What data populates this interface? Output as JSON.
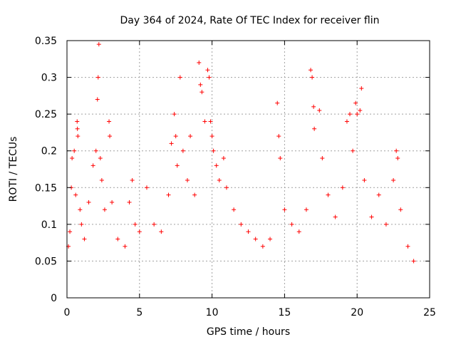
{
  "chart_data": {
    "type": "scatter",
    "title": "Day 364 of 2024, Rate Of TEC Index for receiver flin",
    "xlabel": "GPS time / hours",
    "ylabel": "ROTI / TECUs",
    "xlim": [
      0,
      25
    ],
    "ylim": [
      0,
      0.35
    ],
    "x_ticks": [
      0,
      5,
      10,
      15,
      20,
      25
    ],
    "x_tick_labels": [
      "0",
      "5",
      "10",
      "15",
      "20",
      "25"
    ],
    "y_ticks": [
      0,
      0.05,
      0.1,
      0.15,
      0.2,
      0.25,
      0.3,
      0.35
    ],
    "y_tick_labels": [
      "0",
      "0.05",
      "0.1",
      "0.15",
      "0.2",
      "0.25",
      "0.3",
      "0.35"
    ],
    "grid": true,
    "marker": "+",
    "marker_color": "#ff0000",
    "points": [
      [
        0.1,
        0.07
      ],
      [
        0.2,
        0.09
      ],
      [
        0.3,
        0.15
      ],
      [
        0.35,
        0.19
      ],
      [
        0.5,
        0.2
      ],
      [
        0.6,
        0.14
      ],
      [
        0.7,
        0.24
      ],
      [
        0.72,
        0.23
      ],
      [
        0.75,
        0.22
      ],
      [
        0.9,
        0.12
      ],
      [
        1.0,
        0.1
      ],
      [
        1.2,
        0.08
      ],
      [
        1.5,
        0.13
      ],
      [
        1.8,
        0.18
      ],
      [
        2.0,
        0.2
      ],
      [
        2.1,
        0.27
      ],
      [
        2.15,
        0.3
      ],
      [
        2.2,
        0.345
      ],
      [
        2.3,
        0.19
      ],
      [
        2.4,
        0.16
      ],
      [
        2.6,
        0.12
      ],
      [
        2.9,
        0.24
      ],
      [
        2.95,
        0.22
      ],
      [
        3.1,
        0.13
      ],
      [
        3.5,
        0.08
      ],
      [
        4.0,
        0.07
      ],
      [
        4.3,
        0.13
      ],
      [
        4.5,
        0.16
      ],
      [
        4.7,
        0.1
      ],
      [
        5.0,
        0.09
      ],
      [
        5.5,
        0.15
      ],
      [
        6.0,
        0.1
      ],
      [
        6.5,
        0.09
      ],
      [
        7.0,
        0.14
      ],
      [
        7.2,
        0.21
      ],
      [
        7.4,
        0.25
      ],
      [
        7.5,
        0.22
      ],
      [
        7.6,
        0.18
      ],
      [
        7.8,
        0.3
      ],
      [
        8.0,
        0.2
      ],
      [
        8.3,
        0.16
      ],
      [
        8.5,
        0.22
      ],
      [
        8.8,
        0.14
      ],
      [
        9.1,
        0.32
      ],
      [
        9.2,
        0.29
      ],
      [
        9.3,
        0.28
      ],
      [
        9.5,
        0.24
      ],
      [
        9.7,
        0.31
      ],
      [
        9.8,
        0.3
      ],
      [
        9.9,
        0.24
      ],
      [
        10.0,
        0.22
      ],
      [
        10.1,
        0.2
      ],
      [
        10.3,
        0.18
      ],
      [
        10.5,
        0.16
      ],
      [
        10.8,
        0.19
      ],
      [
        11.0,
        0.15
      ],
      [
        11.5,
        0.12
      ],
      [
        12.0,
        0.1
      ],
      [
        12.5,
        0.09
      ],
      [
        13.0,
        0.08
      ],
      [
        13.5,
        0.07
      ],
      [
        14.0,
        0.08
      ],
      [
        14.5,
        0.265
      ],
      [
        14.6,
        0.22
      ],
      [
        14.7,
        0.19
      ],
      [
        15.0,
        0.12
      ],
      [
        15.5,
        0.1
      ],
      [
        16.0,
        0.09
      ],
      [
        16.5,
        0.12
      ],
      [
        16.8,
        0.31
      ],
      [
        16.9,
        0.3
      ],
      [
        17.0,
        0.26
      ],
      [
        17.05,
        0.23
      ],
      [
        17.4,
        0.255
      ],
      [
        17.6,
        0.19
      ],
      [
        18.0,
        0.14
      ],
      [
        18.5,
        0.11
      ],
      [
        19.0,
        0.15
      ],
      [
        19.3,
        0.24
      ],
      [
        19.5,
        0.25
      ],
      [
        19.7,
        0.2
      ],
      [
        19.9,
        0.265
      ],
      [
        20.0,
        0.25
      ],
      [
        20.2,
        0.255
      ],
      [
        20.3,
        0.285
      ],
      [
        20.5,
        0.16
      ],
      [
        21.0,
        0.11
      ],
      [
        21.5,
        0.14
      ],
      [
        22.0,
        0.1
      ],
      [
        22.5,
        0.16
      ],
      [
        22.7,
        0.2
      ],
      [
        22.8,
        0.19
      ],
      [
        23.0,
        0.12
      ],
      [
        23.5,
        0.07
      ],
      [
        23.9,
        0.05
      ]
    ]
  }
}
